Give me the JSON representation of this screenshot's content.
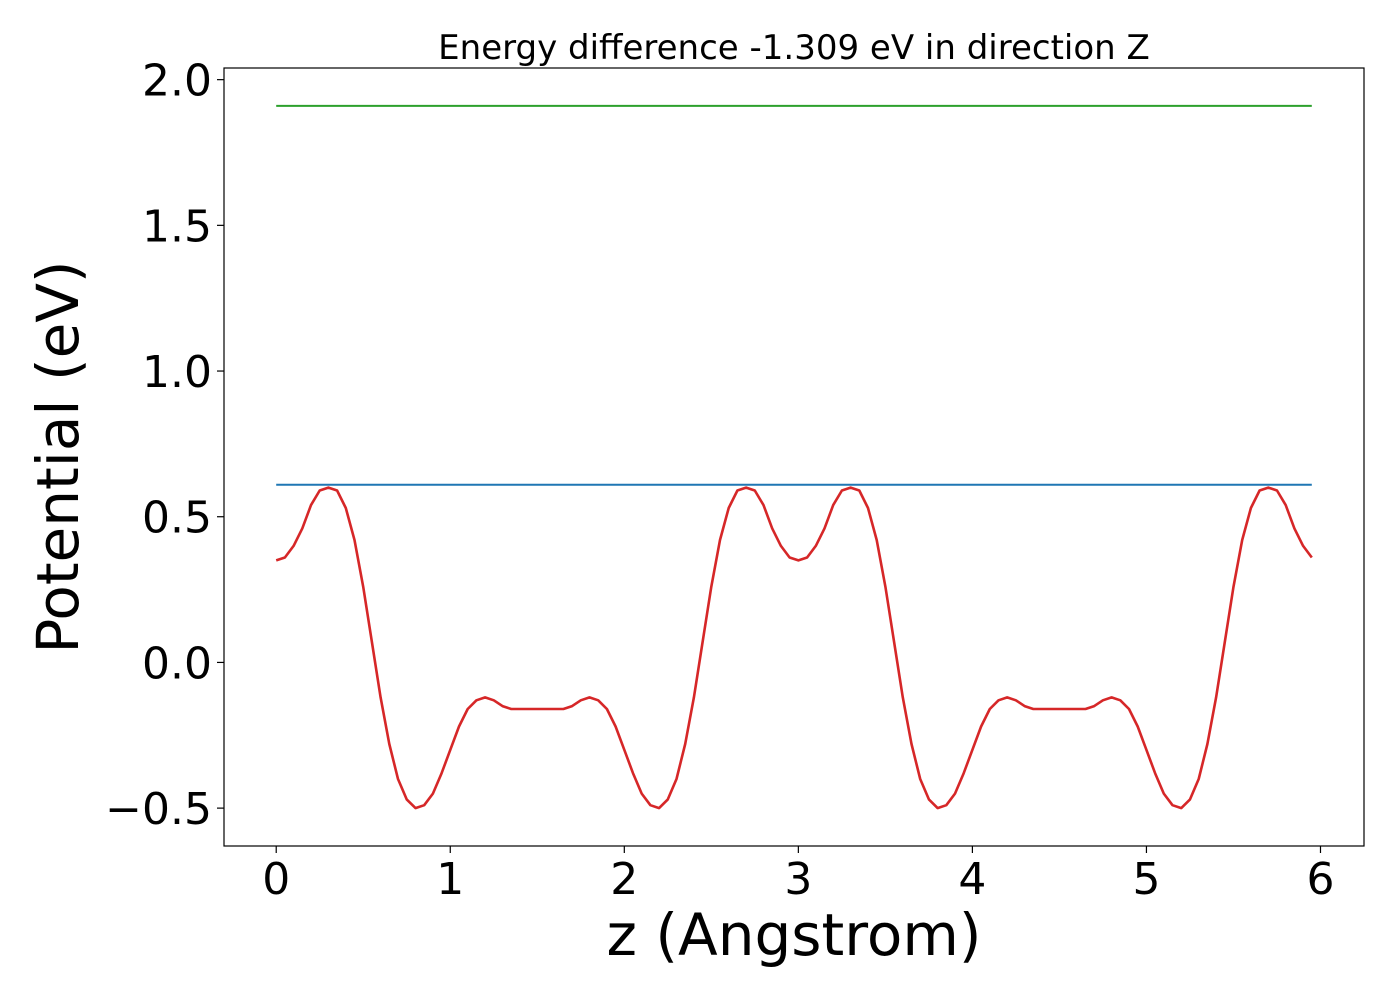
{
  "chart_data": {
    "type": "line",
    "title": "Energy difference -1.309 eV in direction Z",
    "xlabel": "z (Angstrom)",
    "ylabel": "Potential (eV)",
    "xlim": [
      -0.3,
      6.25
    ],
    "ylim": [
      -0.63,
      2.04
    ],
    "xticks": [
      0,
      1,
      2,
      3,
      4,
      5,
      6
    ],
    "xtick_labels": [
      "0",
      "1",
      "2",
      "3",
      "4",
      "5",
      "6"
    ],
    "yticks": [
      -0.5,
      0.0,
      0.5,
      1.0,
      1.5,
      2.0
    ],
    "ytick_labels": [
      "−0.5",
      "0.0",
      "0.5",
      "1.0",
      "1.5",
      "2.0"
    ],
    "grid": false,
    "series": [
      {
        "color": "#2ca02c",
        "x": [
          0,
          5.95
        ],
        "y": [
          1.91,
          1.91
        ]
      },
      {
        "color": "#1f77b4",
        "x": [
          0,
          5.95
        ],
        "y": [
          0.61,
          0.61
        ]
      },
      {
        "color": "#d62728",
        "x": [
          0.0,
          0.05,
          0.1,
          0.15,
          0.2,
          0.25,
          0.3,
          0.35,
          0.4,
          0.45,
          0.5,
          0.55,
          0.6,
          0.65,
          0.7,
          0.75,
          0.8,
          0.85,
          0.9,
          0.95,
          1.0,
          1.05,
          1.1,
          1.15,
          1.2,
          1.25,
          1.3,
          1.35,
          1.4,
          1.45,
          1.5,
          1.55,
          1.6,
          1.65,
          1.7,
          1.75,
          1.8,
          1.85,
          1.9,
          1.95,
          2.0,
          2.05,
          2.1,
          2.15,
          2.2,
          2.25,
          2.3,
          2.35,
          2.4,
          2.45,
          2.5,
          2.55,
          2.6,
          2.65,
          2.7,
          2.75,
          2.8,
          2.85,
          2.9,
          2.95,
          3.0,
          3.05,
          3.1,
          3.15,
          3.2,
          3.25,
          3.3,
          3.35,
          3.4,
          3.45,
          3.5,
          3.55,
          3.6,
          3.65,
          3.7,
          3.75,
          3.8,
          3.85,
          3.9,
          3.95,
          4.0,
          4.05,
          4.1,
          4.15,
          4.2,
          4.25,
          4.3,
          4.35,
          4.4,
          4.45,
          4.5,
          4.55,
          4.6,
          4.65,
          4.7,
          4.75,
          4.8,
          4.85,
          4.9,
          4.95,
          5.0,
          5.05,
          5.1,
          5.15,
          5.2,
          5.25,
          5.3,
          5.35,
          5.4,
          5.45,
          5.5,
          5.55,
          5.6,
          5.65,
          5.7,
          5.75,
          5.8,
          5.85,
          5.9,
          5.95
        ],
        "y": [
          0.35,
          0.36,
          0.4,
          0.46,
          0.54,
          0.59,
          0.6,
          0.59,
          0.53,
          0.42,
          0.26,
          0.07,
          -0.12,
          -0.28,
          -0.4,
          -0.47,
          -0.5,
          -0.49,
          -0.45,
          -0.38,
          -0.3,
          -0.22,
          -0.16,
          -0.13,
          -0.12,
          -0.13,
          -0.15,
          -0.16,
          -0.16,
          -0.16,
          -0.16,
          -0.16,
          -0.16,
          -0.16,
          -0.15,
          -0.13,
          -0.12,
          -0.13,
          -0.16,
          -0.22,
          -0.3,
          -0.38,
          -0.45,
          -0.49,
          -0.5,
          -0.47,
          -0.4,
          -0.28,
          -0.12,
          0.07,
          0.26,
          0.42,
          0.53,
          0.59,
          0.6,
          0.59,
          0.54,
          0.46,
          0.4,
          0.36,
          0.35,
          0.36,
          0.4,
          0.46,
          0.54,
          0.59,
          0.6,
          0.59,
          0.53,
          0.42,
          0.26,
          0.07,
          -0.12,
          -0.28,
          -0.4,
          -0.47,
          -0.5,
          -0.49,
          -0.45,
          -0.38,
          -0.3,
          -0.22,
          -0.16,
          -0.13,
          -0.12,
          -0.13,
          -0.15,
          -0.16,
          -0.16,
          -0.16,
          -0.16,
          -0.16,
          -0.16,
          -0.16,
          -0.15,
          -0.13,
          -0.12,
          -0.13,
          -0.16,
          -0.22,
          -0.3,
          -0.38,
          -0.45,
          -0.49,
          -0.5,
          -0.47,
          -0.4,
          -0.28,
          -0.12,
          0.07,
          0.26,
          0.42,
          0.53,
          0.59,
          0.6,
          0.59,
          0.54,
          0.46,
          0.4,
          0.36
        ]
      }
    ]
  }
}
